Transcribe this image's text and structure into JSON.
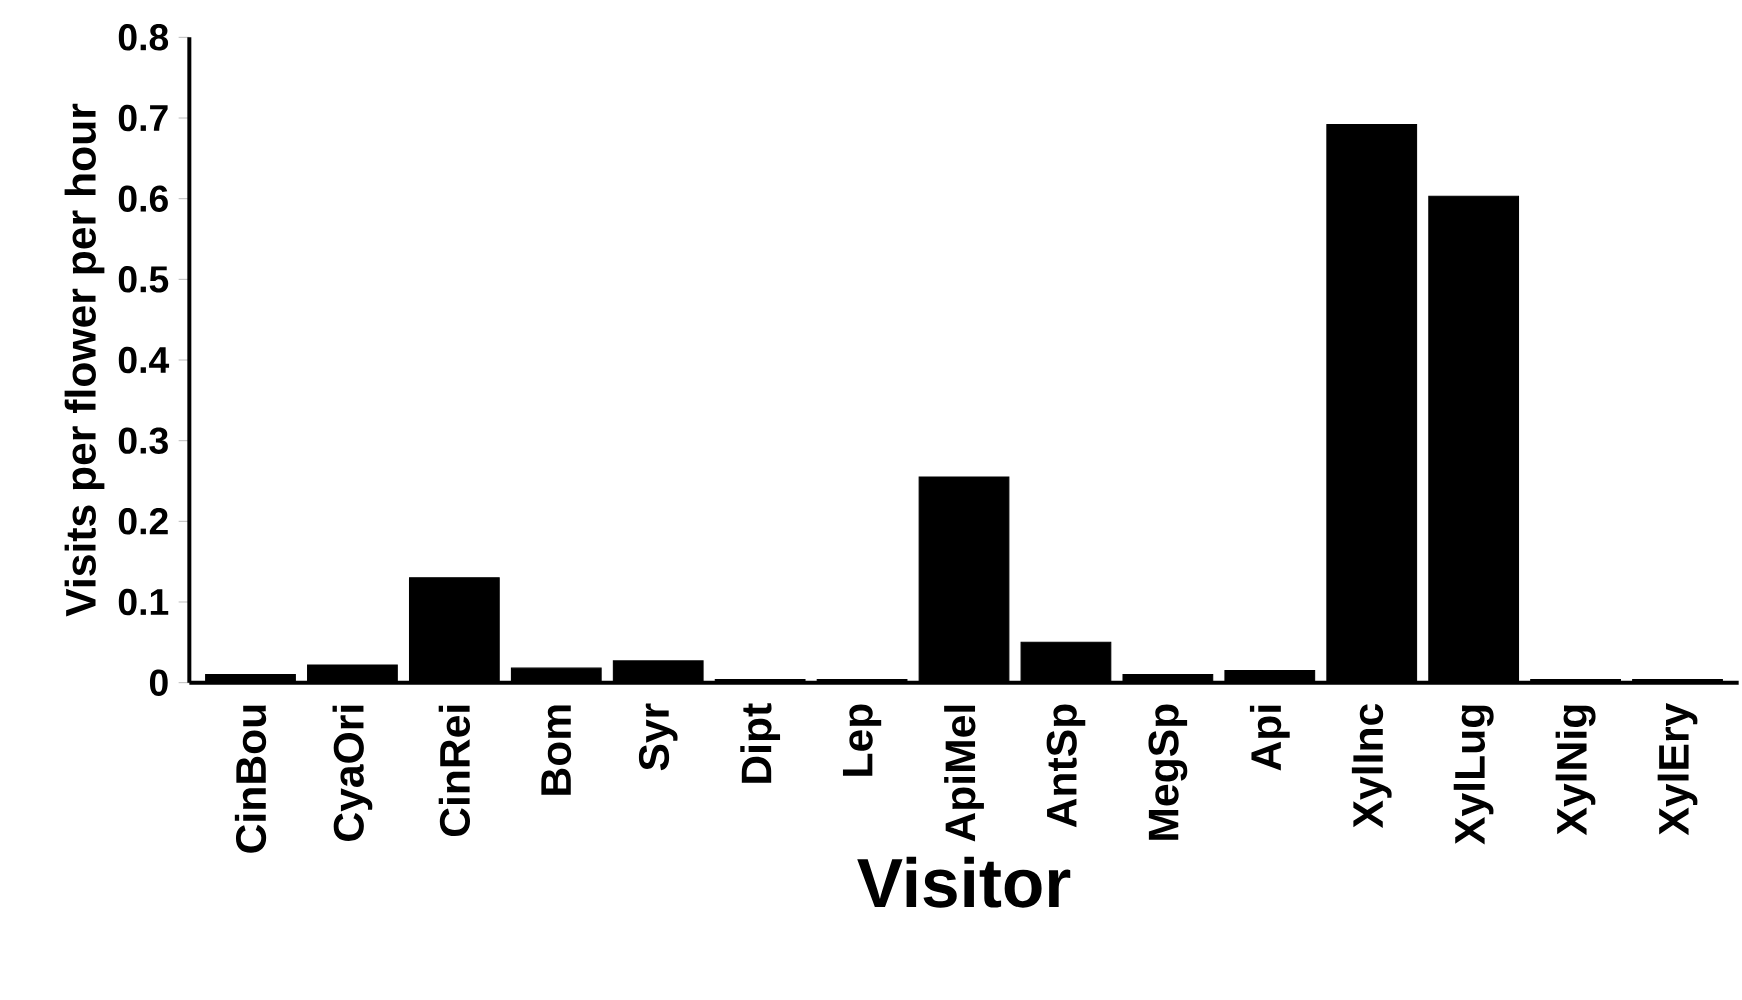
{
  "chart_data": {
    "type": "bar",
    "xlabel": "Visitor",
    "ylabel": "Visits per flower per hour",
    "categories": [
      "CinBou",
      "CyaOri",
      "CinRei",
      "Bom",
      "Syr",
      "Dipt",
      "Lep",
      "ApiMel",
      "AntSp",
      "MegSp",
      "Api",
      "XylInc",
      "XylLug",
      "XylNig",
      "XylEry"
    ],
    "values": [
      0.01,
      0.022,
      0.13,
      0.018,
      0.027,
      0.004,
      0.004,
      0.255,
      0.05,
      0.01,
      0.015,
      0.692,
      0.603,
      0.004,
      0.004
    ],
    "color": "#000000",
    "ylim": [
      0,
      0.8
    ],
    "yticks": [
      0,
      0.1,
      0.2,
      0.3,
      0.4,
      0.5,
      0.6,
      0.7,
      0.8
    ],
    "grid": false
  }
}
